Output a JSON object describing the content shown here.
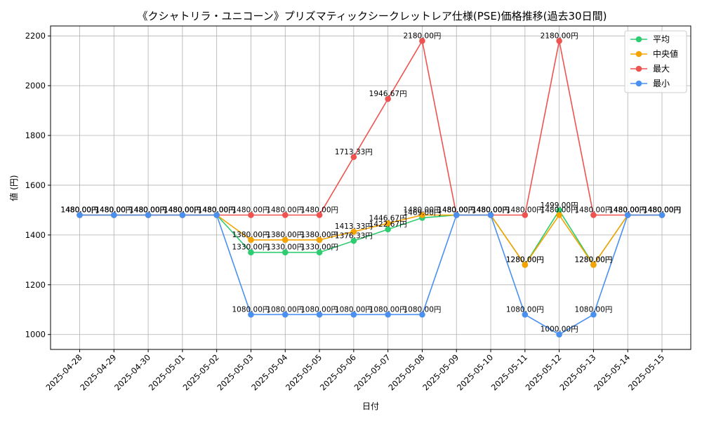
{
  "chart_data": {
    "type": "line",
    "title": "《クシャトリラ・ユニコーン》プリズマティックシークレットレア仕様(PSE)価格推移(過去30日間)",
    "xlabel": "日付",
    "ylabel": "値 (円)",
    "ylim": [
      940,
      2240
    ],
    "yticks": [
      1000,
      1200,
      1400,
      1600,
      1800,
      2000,
      2200
    ],
    "grid": true,
    "legend_position": "top-right",
    "x": [
      "2025-04-28",
      "2025-04-29",
      "2025-04-30",
      "2025-05-01",
      "2025-05-02",
      "2025-05-03",
      "2025-05-04",
      "2025-05-05",
      "2025-05-06",
      "2025-05-07",
      "2025-05-08",
      "2025-05-09",
      "2025-05-10",
      "2025-05-11",
      "2025-05-12",
      "2025-05-13",
      "2025-05-14",
      "2025-05-15"
    ],
    "series": [
      {
        "name": "平均",
        "color": "#2ecc71",
        "values": [
          1480,
          1480,
          1480,
          1480,
          1480,
          1330,
          1330,
          1330,
          1376.33,
          1422.67,
          1469,
          1480,
          1480,
          1280,
          1499,
          1280,
          1480,
          1480
        ],
        "labels": [
          "1480.00円",
          "1480.00円",
          "1480.00円",
          "1480.00円",
          "1480.00円",
          "1330.00円",
          "1330.00円",
          "1330.00円",
          "1376.33円",
          "1422.67円",
          "1469.00円",
          "1480.00円",
          "1480.00円",
          "1280.00円",
          "1499.00円",
          "1280.00円",
          "1480.00円",
          "1480.00円"
        ]
      },
      {
        "name": "中央値",
        "color": "#f5a300",
        "values": [
          1480,
          1480,
          1480,
          1480,
          1480,
          1380,
          1380,
          1380,
          1413.33,
          1446.67,
          1480,
          1480,
          1480,
          1280,
          1480,
          1280,
          1480,
          1480
        ],
        "labels": [
          "1480.00円",
          "1480.00円",
          "1480.00円",
          "1480.00円",
          "1480.00円",
          "1380.00円",
          "1380.00円",
          "1380.00円",
          "1413.33円",
          "1446.67円",
          "1480.00円",
          "1480.00円",
          "1480.00円",
          "1280.00円",
          "1480.00円",
          "1280.00円",
          "1480.00円",
          "1480.00円"
        ]
      },
      {
        "name": "最大",
        "color": "#ef5350",
        "values": [
          1480,
          1480,
          1480,
          1480,
          1480,
          1480,
          1480,
          1480,
          1713.33,
          1946.67,
          2180,
          1480,
          1480,
          1480,
          2180,
          1480,
          1480,
          1480
        ],
        "labels": [
          "1480.00円",
          "1480.00円",
          "1480.00円",
          "1480.00円",
          "1480.00円",
          "1480.00円",
          "1480.00円",
          "1480.00円",
          "1713.33円",
          "1946.67円",
          "2180.00円",
          "1480.00円",
          "1480.00円",
          "1480.00円",
          "2180.00円",
          "1480.00円",
          "1480.00円",
          "1480.00円"
        ]
      },
      {
        "name": "最小",
        "color": "#4a90f0",
        "values": [
          1480,
          1480,
          1480,
          1480,
          1480,
          1080,
          1080,
          1080,
          1080,
          1080,
          1080,
          1480,
          1480,
          1080,
          1000,
          1080,
          1480,
          1480
        ],
        "labels": [
          "1480.00円",
          "1480.00円",
          "1480.00円",
          "1480.00円",
          "1480.00円",
          "1080.00円",
          "1080.00円",
          "1080.00円",
          "1080.00円",
          "1080.00円",
          "1080.00円",
          "1480.00円",
          "1480.00円",
          "1080.00円",
          "1000.00円",
          "1080.00円",
          "1480.00円",
          "1480.00円"
        ]
      }
    ]
  }
}
